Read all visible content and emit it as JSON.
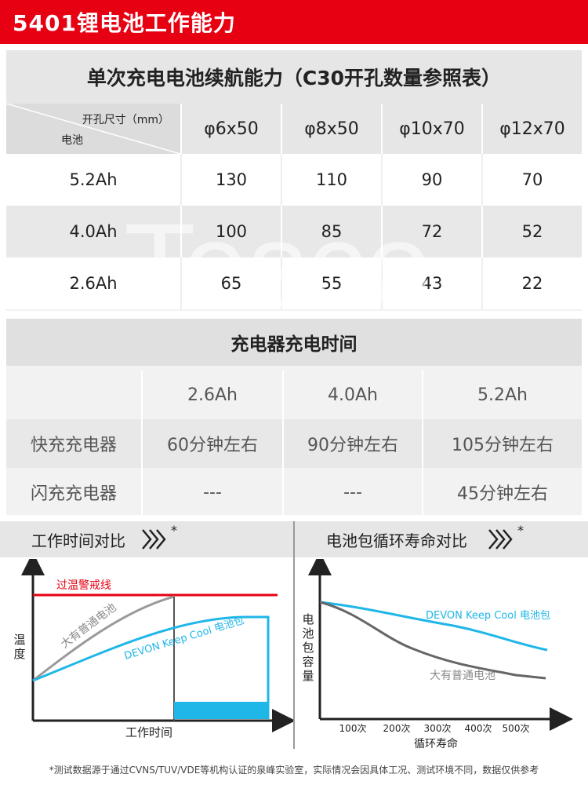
{
  "header": {
    "title": "5401锂电池工作能力"
  },
  "endurance": {
    "title": "单次充电电池续航能力（C30开孔数量参照表）",
    "corner_top": "开孔尺寸（mm）",
    "corner_bottom": "电池",
    "columns": [
      "φ6x50",
      "φ8x50",
      "φ10x70",
      "φ12x70"
    ],
    "rows": [
      {
        "battery": "5.2Ah",
        "values": [
          "130",
          "110",
          "90",
          "70"
        ]
      },
      {
        "battery": "4.0Ah",
        "values": [
          "100",
          "85",
          "72",
          "52"
        ]
      },
      {
        "battery": "2.6Ah",
        "values": [
          "65",
          "55",
          "43",
          "22"
        ]
      }
    ],
    "watermark": "Tesco"
  },
  "charging": {
    "title": "充电器充电时间",
    "columns": [
      "",
      "2.6Ah",
      "4.0Ah",
      "5.2Ah"
    ],
    "rows": [
      {
        "label": "快充充电器",
        "values": [
          "60分钟左右",
          "90分钟左右",
          "105分钟左右"
        ]
      },
      {
        "label": "闪充充电器",
        "values": [
          "---",
          "---",
          "45分钟左右"
        ]
      }
    ]
  },
  "chart_left": {
    "bar_label": "工作时间对比",
    "star": "*",
    "warning_label": "过温警戒线",
    "y_label": "温度",
    "x_label": "工作时间",
    "series_gray": "大有普通电池",
    "series_blue": "DEVON Keep Cool 电池包"
  },
  "chart_right": {
    "bar_label": "电池包循环寿命对比",
    "star": "*",
    "y_label": "电池包容量",
    "x_label": "循环寿命",
    "ticks": [
      "100次",
      "200次",
      "300次",
      "400次",
      "500次"
    ],
    "series_blue": "DEVON Keep Cool  电池包",
    "series_gray": "大有普通电池"
  },
  "footnote": "*测试数据源于通过CVNS/TUV/VDE等机构认证的泉峰实验室，实际情况会因具体工况、测试环境不同，数据仅供参考",
  "colors": {
    "red": "#e60012",
    "blue": "#1fb6e8",
    "gray": "#888888"
  }
}
